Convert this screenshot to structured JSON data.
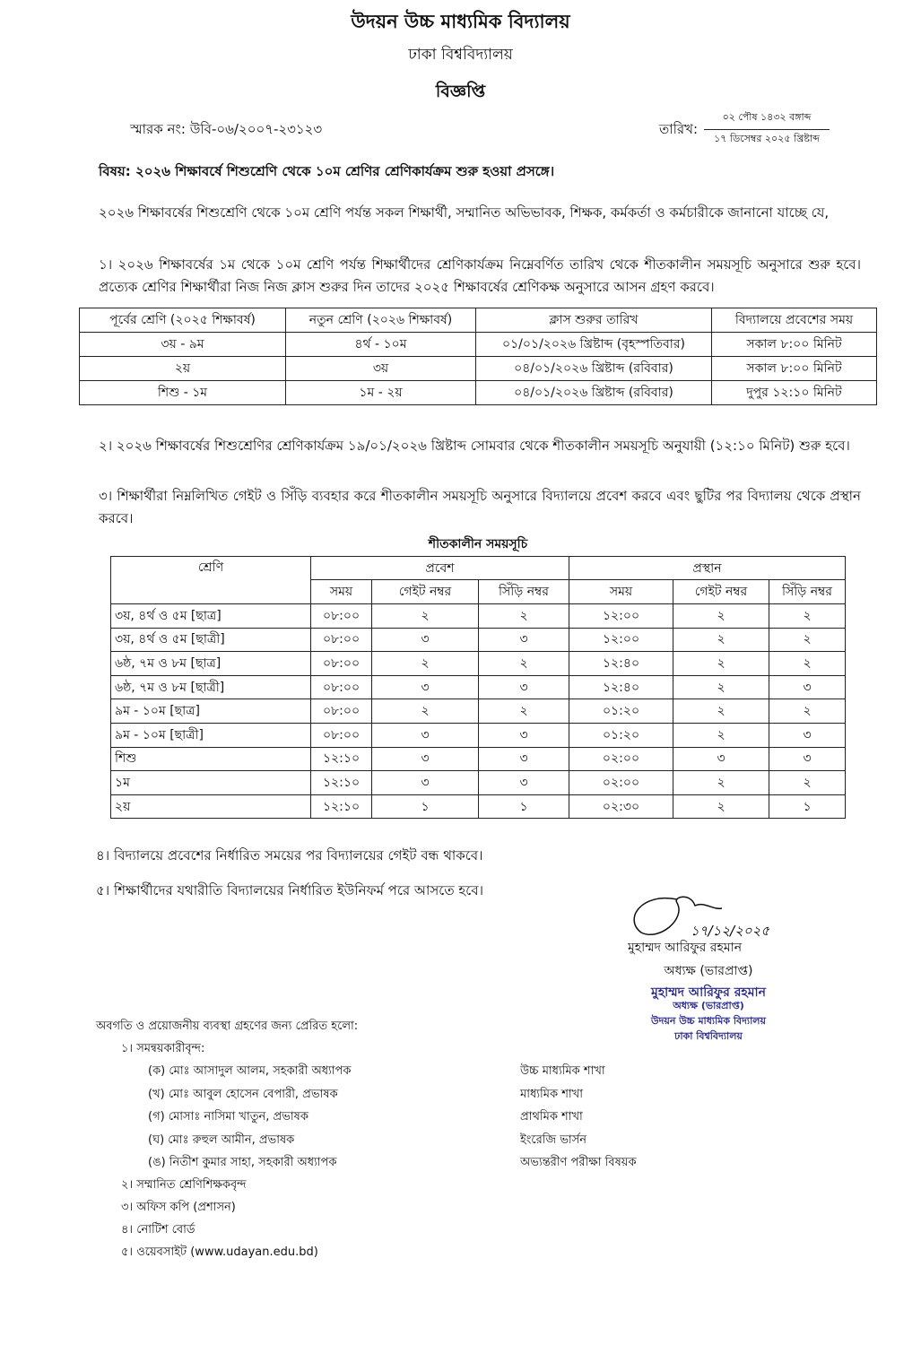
{
  "header": {
    "school": "উদয়ন উচ্চ মাধ্যমিক বিদ্যালয়",
    "university": "ঢাকা বিশ্ববিদ্যালয়",
    "notice": "বিজ্ঞপ্তি"
  },
  "memo": "স্মারক নং: উবি-০৬/২০০৭-২৩১২৩",
  "date": {
    "label": "তারিখ:",
    "bangla": "০২ পৌষ ১৪৩২ বঙ্গাব্দ",
    "gregorian": "১৭ ডিসেম্বর ২০২৫ খ্রিষ্টাব্দ"
  },
  "subject": "বিষয়: ২০২৬ শিক্ষাবর্ষে শিশুশ্রেণি থেকে ১০ম শ্রেণির শ্রেণিকার্যক্রম শুরু হওয়া প্রসঙ্গে।",
  "intro": "২০২৬ শিক্ষাবর্ষের শিশুশ্রেণি থেকে ১০ম শ্রেণি পর্যন্ত সকল শিক্ষার্থী, সম্মানিত অভিভাবক, শিক্ষক, কর্মকর্তা ও কর্মচারীকে জানানো যাচ্ছে যে,",
  "point1": "১। ২০২৬ শিক্ষাবর্ষের ১ম থেকে ১০ম শ্রেণি পর্যন্ত শিক্ষার্থীদের শ্রেণিকার্যক্রম নিম্নেবর্ণিত তারিখ থেকে শীতকালীন সময়সূচি অনুসারে শুরু হবে। প্রত্যেক শ্রেণির শিক্ষার্থীরা নিজ নিজ ক্লাস শুরুর দিন তাদের ২০২৫ শিক্ষাবর্ষের শ্রেণিকক্ষ অনুসারে আসন গ্রহণ করবে।",
  "table1": {
    "headers": [
      "পূর্বের শ্রেণি (২০২৫  শিক্ষাবর্ষ)",
      "নতুন শ্রেণি (২০২৬ শিক্ষাবর্ষ)",
      "ক্লাস শুরুর তারিখ",
      "বিদ্যালয়ে প্রবেশের সময়"
    ],
    "rows": [
      [
        "৩য় - ৯ম",
        "৪র্থ - ১০ম",
        "০১/০১/২০২৬ খ্রিষ্টাব্দ (বৃহস্পতিবার)",
        "সকাল ৮:০০ মিনিট"
      ],
      [
        "২য়",
        "৩য়",
        "০৪/০১/২০২৬ খ্রিষ্টাব্দ (রবিবার)",
        "সকাল ৮:০০ মিনিট"
      ],
      [
        "শিশু - ১ম",
        "১ম - ২য়",
        "০৪/০১/২০২৬ খ্রিষ্টাব্দ (রবিবার)",
        "দুপুর ১২:১০ মিনিট"
      ]
    ]
  },
  "point2": "২। ২০২৬ শিক্ষাবর্ষের শিশুশ্রেণির শ্রেণিকার্যক্রম ১৯/০১/২০২৬ খ্রিষ্টাব্দ সোমবার থেকে শীতকালীন সময়সূচি অনুযায়ী (১২:১০ মিনিট) শুরু হবে।",
  "point3": "৩। শিক্ষার্থীরা নিম্নলিখিত গেইট ও সিঁড়ি ব্যবহার করে শীতকালীন সময়সূচি অনুসারে বিদ্যালয়ে প্রবেশ করবে এবং ছুটির পর বিদ্যালয় থেকে প্রস্থান করবে।",
  "table2": {
    "title": "শীতকালীন সময়সূচি",
    "class_header": "শ্রেণি",
    "entry": "প্রবেশ",
    "exit": "প্রস্থান",
    "sub": [
      "সময়",
      "গেইট নম্বর",
      "সিঁড়ি নম্বর",
      "সময়",
      "গেইট নম্বর",
      "সিঁড়ি নম্বর"
    ],
    "rows": [
      [
        "৩য়, ৪র্থ ও ৫ম [ছাত্র]",
        "০৮:০০",
        "২",
        "২",
        "১২:০০",
        "২",
        "২"
      ],
      [
        "৩য়, ৪র্থ ও ৫ম [ছাত্রী]",
        "০৮:০০",
        "৩",
        "৩",
        "১২:০০",
        "২",
        "২"
      ],
      [
        "৬ষ্ঠ, ৭ম ও ৮ম [ছাত্র]",
        "০৮:০০",
        "২",
        "২",
        "১২:৪০",
        "২",
        "২"
      ],
      [
        "৬ষ্ঠ, ৭ম ও ৮ম [ছাত্রী]",
        "০৮:০০",
        "৩",
        "৩",
        "১২:৪০",
        "২",
        "৩"
      ],
      [
        "৯ম - ১০ম [ছাত্র]",
        "০৮:০০",
        "২",
        "২",
        "০১:২০",
        "২",
        "২"
      ],
      [
        "৯ম - ১০ম [ছাত্রী]",
        "০৮:০০",
        "৩",
        "৩",
        "০১:২০",
        "২",
        "৩"
      ],
      [
        "শিশু",
        "১২:১০",
        "৩",
        "৩",
        "০২:০০",
        "৩",
        "৩"
      ],
      [
        "১ম",
        "১২:১০",
        "৩",
        "৩",
        "০২:০০",
        "২",
        "২"
      ],
      [
        "২য়",
        "১২:১০",
        "১",
        "১",
        "০২:৩০",
        "২",
        "১"
      ]
    ]
  },
  "point4": "৪। বিদ্যালয়ে প্রবেশের নির্ধারিত সময়ের পর বিদ্যালয়ের গেইট বন্ধ থাকবে।",
  "point5": "৫। শিক্ষার্থীদের যথারীতি বিদ্যালয়ের নির্ধারিত ইউনিফর্ম পরে আসতে হবে।",
  "signature": {
    "handwritten_date": "১৭/১২/২০২৫",
    "name": "মুহাম্মদ আরিফুর রহমান",
    "designation": "অধ্যক্ষ (ভারপ্রাপ্ত)",
    "stamp": [
      "মুহাম্মদ আরিফুর রহমান",
      "অধ্যক্ষ (ভারপ্রাপ্ত)",
      "উদয়ন উচ্চ মাধ্যমিক বিদ্যালয়",
      "ঢাকা বিশ্ববিদ্যালয়"
    ],
    "stamp_color": "#2b2b8c"
  },
  "distribution": {
    "intro": "অবগতি ও প্রয়োজনীয় ব্যবস্থা গ্রহণের জন্য প্রেরিত হলো:",
    "item1": "১।  সমন্বয়কারীবৃন্দ:",
    "coordinators": [
      [
        "(ক) মোঃ আসাদুল আলম, সহকারী অধ্যাপক",
        "উচ্চ মাধ্যমিক শাখা"
      ],
      [
        "(খ) মোঃ আবুল হোসেন বেপারী, প্রভাষক",
        "মাধ্যমিক শাখা"
      ],
      [
        "(গ) মোসাঃ নাসিমা খাতুন, প্রভাষক",
        "প্রাথমিক শাখা"
      ],
      [
        "(ঘ) মোঃ রুহুল আমীন, প্রভাষক",
        "ইংরেজি ভার্সন"
      ],
      [
        "(ঙ) নিতীশ কুমার সাহা, সহকারী অধ্যাপক",
        "অভ্যন্তরীণ পরীক্ষা বিষয়ক"
      ]
    ],
    "others": [
      "২।  সম্মানিত শ্রেণিশিক্ষকবৃন্দ",
      "৩।  অফিস কপি (প্রশাসন)",
      "৪।  নোটিশ বোর্ড",
      "৫।  ওয়েবসাইট (www.udayan.edu.bd)"
    ]
  }
}
